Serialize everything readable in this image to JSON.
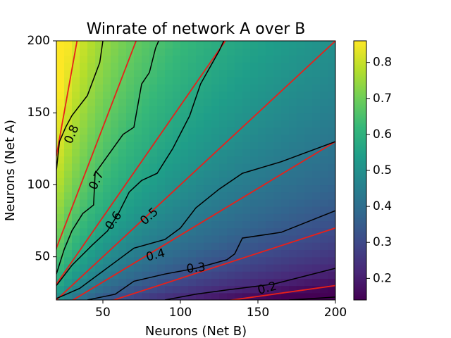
{
  "chart_data": {
    "type": "heatmap",
    "title": "Winrate of network A over B",
    "xlabel": "Neurons (Net B)",
    "ylabel": "Neurons (Net A)",
    "xlim": [
      20,
      200
    ],
    "ylim": [
      20,
      200
    ],
    "x_ticks": [
      50,
      100,
      150,
      200
    ],
    "y_ticks": [
      50,
      100,
      150,
      200
    ],
    "colorbar": {
      "colormap": "viridis",
      "range": [
        0.14,
        0.86
      ],
      "ticks": [
        "0.2",
        "0.3",
        "0.4",
        "0.5",
        "0.6",
        "0.7",
        "0.8"
      ]
    },
    "contour_levels": [
      "0.2",
      "0.3",
      "0.4",
      "0.5",
      "0.6",
      "0.7",
      "0.8"
    ],
    "contour_lines": [
      {
        "level": 0.8,
        "points": [
          [
            20,
            55
          ],
          [
            20,
            110
          ],
          [
            22,
            130
          ],
          [
            26,
            140
          ],
          [
            30,
            148
          ],
          [
            40,
            162
          ],
          [
            48,
            185
          ],
          [
            50,
            200
          ]
        ]
      },
      {
        "level": 0.7,
        "points": [
          [
            20,
            38
          ],
          [
            25,
            55
          ],
          [
            30,
            68
          ],
          [
            37,
            80
          ],
          [
            44,
            86
          ],
          [
            45,
            108
          ],
          [
            53,
            120
          ],
          [
            63,
            135
          ],
          [
            70,
            140
          ],
          [
            75,
            170
          ],
          [
            80,
            178
          ],
          [
            84,
            195
          ],
          [
            86,
            200
          ]
        ]
      },
      {
        "level": 0.6,
        "points": [
          [
            20,
            30
          ],
          [
            30,
            44
          ],
          [
            43,
            58
          ],
          [
            53,
            68
          ],
          [
            60,
            80
          ],
          [
            67,
            95
          ],
          [
            75,
            103
          ],
          [
            85,
            108
          ],
          [
            95,
            125
          ],
          [
            106,
            148
          ],
          [
            113,
            170
          ],
          [
            125,
            193
          ],
          [
            128,
            200
          ]
        ]
      },
      {
        "level": 0.5,
        "points": [
          [
            20,
            21
          ],
          [
            35,
            28
          ],
          [
            50,
            40
          ],
          [
            60,
            48
          ],
          [
            70,
            56
          ],
          [
            90,
            62
          ],
          [
            100,
            70
          ],
          [
            110,
            84
          ],
          [
            125,
            97
          ],
          [
            140,
            108
          ],
          [
            165,
            116
          ],
          [
            200,
            130
          ]
        ]
      },
      {
        "level": 0.4,
        "points": [
          [
            40,
            20
          ],
          [
            58,
            24
          ],
          [
            70,
            33
          ],
          [
            90,
            38
          ],
          [
            110,
            42
          ],
          [
            130,
            48
          ],
          [
            135,
            52
          ],
          [
            140,
            63
          ],
          [
            165,
            67
          ],
          [
            200,
            82
          ]
        ]
      },
      {
        "level": 0.3,
        "points": [
          [
            90,
            20
          ],
          [
            110,
            24
          ],
          [
            130,
            27
          ],
          [
            160,
            31
          ],
          [
            200,
            42
          ]
        ]
      },
      {
        "level": 0.2,
        "points": [
          [
            170,
            20
          ],
          [
            200,
            22
          ]
        ]
      }
    ],
    "red_reference_lines": [
      {
        "ratio": 0.15
      },
      {
        "ratio": 0.35
      },
      {
        "ratio": 0.65
      },
      {
        "ratio": 1.0
      },
      {
        "ratio": 1.55
      },
      {
        "ratio": 2.8
      },
      {
        "ratio": 6.0
      }
    ],
    "contour_labels": [
      {
        "text": "0.8",
        "x": 30,
        "y": 135,
        "angle": -67
      },
      {
        "text": "0.7",
        "x": 46,
        "y": 103,
        "angle": -65
      },
      {
        "text": "0.6",
        "x": 57,
        "y": 75,
        "angle": -55
      },
      {
        "text": "0.5",
        "x": 80,
        "y": 78,
        "angle": -42
      },
      {
        "text": "0.4",
        "x": 84,
        "y": 51,
        "angle": -14
      },
      {
        "text": "0.3",
        "x": 110,
        "y": 42,
        "angle": -6
      },
      {
        "text": "0.2",
        "x": 156,
        "y": 28,
        "angle": -15
      }
    ]
  },
  "colors": {
    "red_lines": "#e8201a",
    "contours": "#000000",
    "viridis_stops": [
      "#440154",
      "#482878",
      "#3e4989",
      "#31688e",
      "#26828e",
      "#1f9e89",
      "#35b779",
      "#6ece58",
      "#b5de2b",
      "#fde725"
    ]
  }
}
